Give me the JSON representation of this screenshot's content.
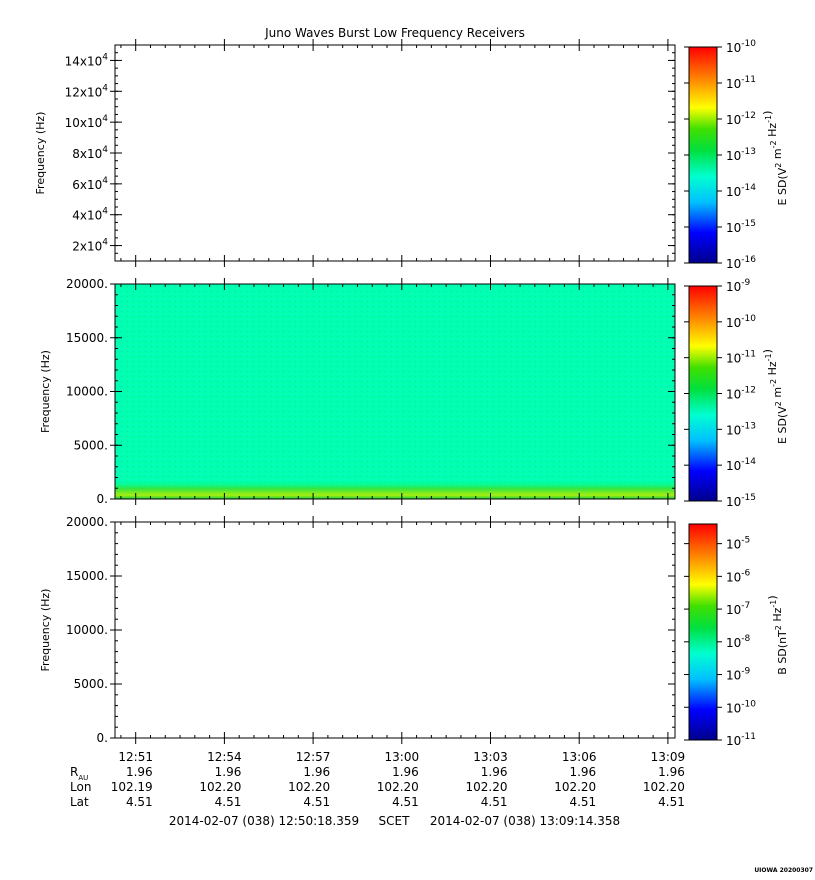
{
  "chart_data": {
    "title": "Juno Waves Burst Low Frequency Receivers",
    "panels": [
      {
        "type": "heatmap",
        "ylabel": "Frequency (Hz)",
        "ylim": [
          10000,
          150000
        ],
        "yticks": [
          {
            "value": 20000,
            "mantissa": "2x10",
            "exp": "4"
          },
          {
            "value": 40000,
            "mantissa": "4x10",
            "exp": "4"
          },
          {
            "value": 60000,
            "mantissa": "6x10",
            "exp": "4"
          },
          {
            "value": 80000,
            "mantissa": "8x10",
            "exp": "4"
          },
          {
            "value": 100000,
            "mantissa": "10x10",
            "exp": "4"
          },
          {
            "value": 120000,
            "mantissa": "12x10",
            "exp": "4"
          },
          {
            "value": 140000,
            "mantissa": "14x10",
            "exp": "4"
          }
        ],
        "colorbar": {
          "label": "E SD",
          "units": "V^2 m^-2 Hz^-1",
          "exp_min": -16,
          "exp_max": -10,
          "ticks": [
            "-10",
            "-11",
            "-12",
            "-13",
            "-14",
            "-15",
            "-16"
          ]
        },
        "has_data": false
      },
      {
        "type": "heatmap",
        "ylabel": "Frequency (Hz)",
        "ylim": [
          0,
          20000
        ],
        "yticks": [
          {
            "value": 0,
            "label": "0."
          },
          {
            "value": 5000,
            "label": "5000."
          },
          {
            "value": 10000,
            "label": "10000."
          },
          {
            "value": 15000,
            "label": "15000."
          },
          {
            "value": 20000,
            "label": "20000."
          }
        ],
        "colorbar": {
          "label": "E SD",
          "units": "V^2 m^-2 Hz^-1",
          "exp_min": -15,
          "exp_max": -9,
          "ticks": [
            "-9",
            "-10",
            "-11",
            "-12",
            "-13",
            "-14",
            "-15"
          ]
        },
        "has_data": true,
        "background_log_sd": -13.2,
        "low_frequency_enhancement": {
          "freq_range_hz": [
            0,
            800
          ],
          "log_sd": -12.0
        }
      },
      {
        "type": "heatmap",
        "ylabel": "Frequency (Hz)",
        "ylim": [
          0,
          20000
        ],
        "yticks": [
          {
            "value": 0,
            "label": "0."
          },
          {
            "value": 5000,
            "label": "5000."
          },
          {
            "value": 10000,
            "label": "10000."
          },
          {
            "value": 15000,
            "label": "15000."
          },
          {
            "value": 20000,
            "label": "20000."
          }
        ],
        "colorbar": {
          "label": "B SD",
          "units": "nT^2 Hz^-1",
          "exp_min": -11,
          "exp_max": -4.4,
          "ticks": [
            "-5",
            "-6",
            "-7",
            "-8",
            "-9",
            "-10",
            "-11"
          ]
        },
        "has_data": false
      }
    ],
    "x_axis": {
      "start_min": 770.3,
      "end_min": 789.24,
      "ticks": [
        {
          "minute": 771,
          "label": "12:51"
        },
        {
          "minute": 774,
          "label": "12:54"
        },
        {
          "minute": 777,
          "label": "12:57"
        },
        {
          "minute": 780,
          "label": "13:00"
        },
        {
          "minute": 783,
          "label": "13:03"
        },
        {
          "minute": 786,
          "label": "13:06"
        },
        {
          "minute": 789,
          "label": "13:09"
        }
      ]
    },
    "ephemeris": {
      "rows": [
        {
          "label": "R",
          "sub": "AU",
          "values": [
            "1.96",
            "1.96",
            "1.96",
            "1.96",
            "1.96",
            "1.96",
            "1.96"
          ]
        },
        {
          "label": "Lon",
          "sub": "",
          "values": [
            "102.19",
            "102.20",
            "102.20",
            "102.20",
            "102.20",
            "102.20",
            "102.20"
          ]
        },
        {
          "label": "Lat",
          "sub": "",
          "values": [
            "4.51",
            "4.51",
            "4.51",
            "4.51",
            "4.51",
            "4.51",
            "4.51"
          ]
        }
      ]
    },
    "time_range": {
      "start": "2014-02-07 (038) 12:50:18.359",
      "frame": "SCET",
      "end": "2014-02-07 (038) 13:09:14.358"
    },
    "credit": "UIOWA 20200307"
  }
}
